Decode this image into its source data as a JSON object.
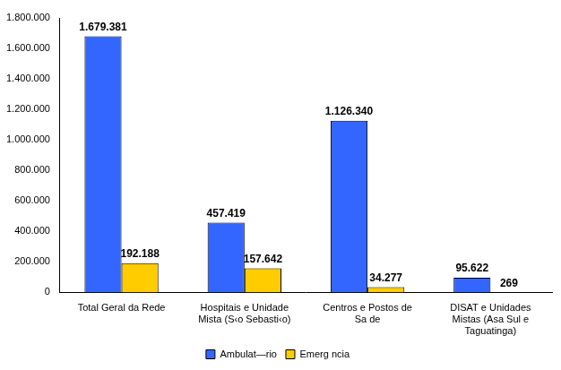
{
  "chart_data": {
    "type": "bar",
    "categories": [
      "Total Geral da Rede",
      "Hospitais e Unidade Mista (S‹o Sebasti‹o)",
      "Centros e Postos de Sa de",
      "DISAT e Unidades Mistas (Asa Sul e Taguatinga)"
    ],
    "series": [
      {
        "name": "Ambulat—rio",
        "color": "#3366ff",
        "values": [
          1679381,
          457419,
          1126340,
          95622
        ],
        "value_labels": [
          "1.679.381",
          "457.419",
          "1.126.340",
          "95.622"
        ]
      },
      {
        "name": "Emerg ncia",
        "color": "#ffcc00",
        "values": [
          192188,
          157642,
          34277,
          269
        ],
        "value_labels": [
          "192.188",
          "157.642",
          "34.277",
          "269"
        ]
      }
    ],
    "ylim": [
      0,
      1800000
    ],
    "yticks": [
      0,
      {
        "value": 200000,
        "label": "200.000"
      },
      {
        "value": 400000,
        "label": "400.000"
      },
      {
        "value": 600000,
        "label": "600.000"
      },
      {
        "value": 800000,
        "label": "800.000"
      },
      {
        "value": 1000000,
        "label": "1.000.000"
      },
      {
        "value": 1200000,
        "label": "1.200.000"
      },
      {
        "value": 1400000,
        "label": "1.400.000"
      },
      {
        "value": 1600000,
        "label": "1.600.000"
      },
      {
        "value": 1800000,
        "label": "1.800.000"
      }
    ],
    "grid": false,
    "legend": "bottom",
    "data_labels": true
  }
}
